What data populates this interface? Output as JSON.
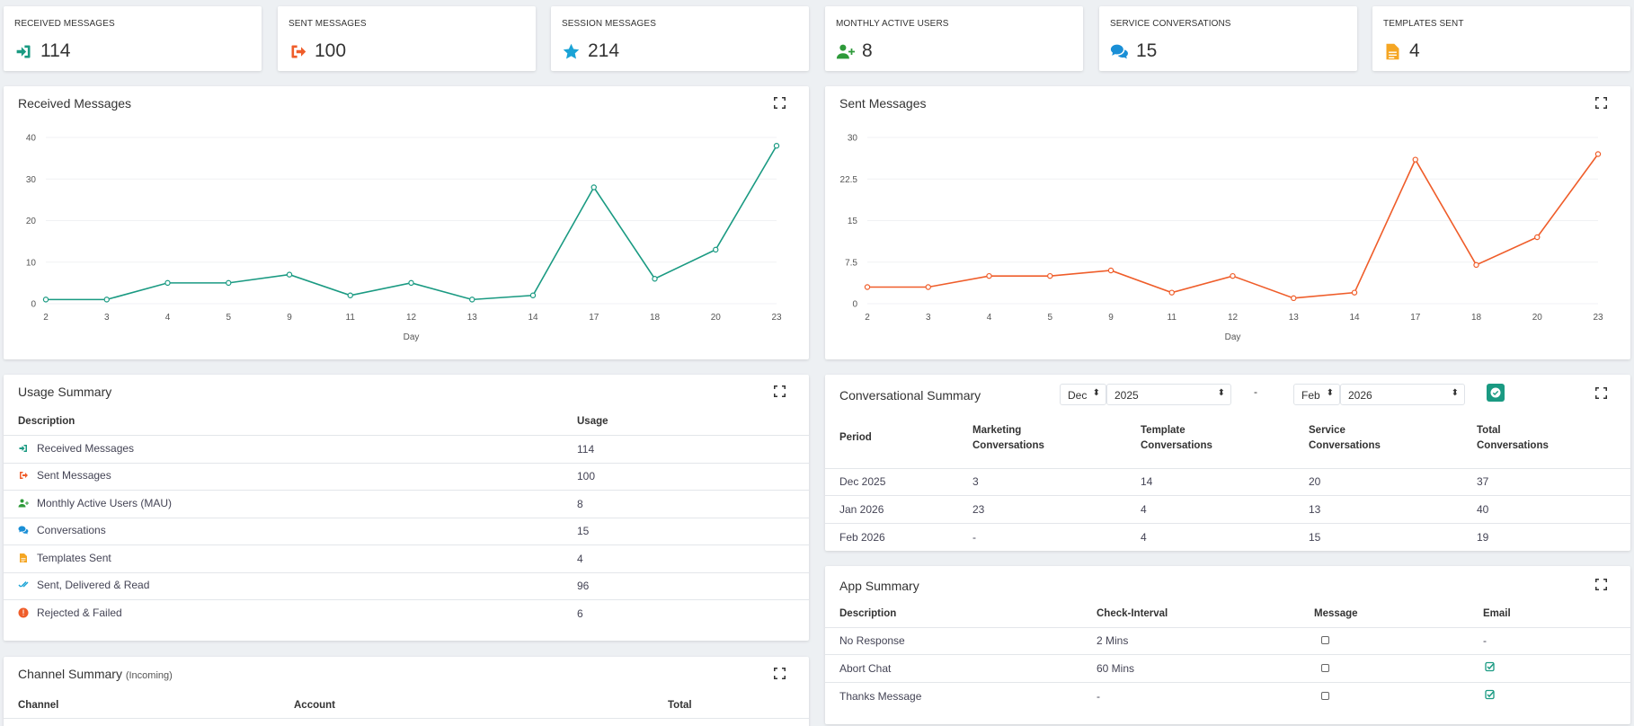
{
  "stats": [
    {
      "label": "RECEIVED MESSAGES",
      "value": "114",
      "icon": "sign-in-icon",
      "color": "#1a9a82"
    },
    {
      "label": "SENT MESSAGES",
      "value": "100",
      "icon": "sign-out-icon",
      "color": "#ef5d2a"
    },
    {
      "label": "SESSION MESSAGES",
      "value": "214",
      "icon": "star-icon",
      "color": "#1aa3d6"
    },
    {
      "label": "MONTHLY ACTIVE USERS",
      "value": "8",
      "icon": "user-plus-icon",
      "color": "#2e9a3a"
    },
    {
      "label": "SERVICE CONVERSATIONS",
      "value": "15",
      "icon": "comments-icon",
      "color": "#1a8fd6"
    },
    {
      "label": "TEMPLATES SENT",
      "value": "4",
      "icon": "file-icon",
      "color": "#f5a623"
    }
  ],
  "received_chart": {
    "title": "Received Messages",
    "chart_data": {
      "type": "line",
      "categories": [
        "2",
        "3",
        "4",
        "5",
        "9",
        "11",
        "12",
        "13",
        "14",
        "17",
        "18",
        "20",
        "23"
      ],
      "values": [
        1,
        1,
        5,
        5,
        7,
        2,
        5,
        1,
        2,
        28,
        6,
        13,
        38
      ],
      "xlabel": "Day",
      "ylabel": "",
      "ylim": [
        0,
        40
      ],
      "yticks": [
        "0",
        "10",
        "20",
        "30",
        "40"
      ],
      "color": "#1a9a82"
    }
  },
  "sent_chart": {
    "title": "Sent Messages",
    "chart_data": {
      "type": "line",
      "categories": [
        "2",
        "3",
        "4",
        "5",
        "9",
        "11",
        "12",
        "13",
        "14",
        "17",
        "18",
        "20",
        "23"
      ],
      "values": [
        3,
        3,
        5,
        5,
        6,
        2,
        5,
        1,
        2,
        26,
        7,
        12,
        27
      ],
      "xlabel": "Day",
      "ylabel": "",
      "ylim": [
        0,
        30
      ],
      "yticks": [
        "0",
        "7.5",
        "15",
        "22.5",
        "30"
      ],
      "color": "#ef5d2a"
    }
  },
  "usage": {
    "title": "Usage Summary",
    "headers": {
      "description": "Description",
      "usage": "Usage"
    },
    "rows": [
      {
        "label": "Received Messages",
        "value": "114",
        "icon": "sign-in-icon",
        "color": "#1a9a82"
      },
      {
        "label": "Sent Messages",
        "value": "100",
        "icon": "sign-out-icon",
        "color": "#ef5d2a"
      },
      {
        "label": "Monthly Active Users (MAU)",
        "value": "8",
        "icon": "user-plus-icon",
        "color": "#2e9a3a"
      },
      {
        "label": "Conversations",
        "value": "15",
        "icon": "comments-icon",
        "color": "#1a8fd6"
      },
      {
        "label": "Templates Sent",
        "value": "4",
        "icon": "file-icon",
        "color": "#f5a623"
      },
      {
        "label": "Sent, Delivered & Read",
        "value": "96",
        "icon": "double-check-icon",
        "color": "#1aa3d6"
      },
      {
        "label": "Rejected & Failed",
        "value": "6",
        "icon": "exclamation-circle-icon",
        "color": "#ef5d2a"
      }
    ]
  },
  "channel": {
    "title": "Channel Summary",
    "subtitle": "(Incoming)",
    "headers": {
      "channel": "Channel",
      "account": "Account",
      "total": "Total"
    }
  },
  "conversational": {
    "title": "Conversational Summary",
    "from_month": "Dec",
    "from_year": "2025",
    "separator": "-",
    "to_month": "Feb",
    "to_year": "2026",
    "headers": {
      "period": "Period",
      "marketing_1": "Marketing",
      "marketing_2": "Conversations",
      "template_1": "Template",
      "template_2": "Conversations",
      "service_1": "Service",
      "service_2": "Conversations",
      "total_1": "Total",
      "total_2": "Conversations"
    },
    "rows": [
      {
        "period": "Dec 2025",
        "marketing": "3",
        "template": "14",
        "service": "20",
        "total": "37"
      },
      {
        "period": "Jan 2026",
        "marketing": "23",
        "template": "4",
        "service": "13",
        "total": "40"
      },
      {
        "period": "Feb 2026",
        "marketing": "-",
        "template": "4",
        "service": "15",
        "total": "19"
      }
    ]
  },
  "app": {
    "title": "App Summary",
    "headers": {
      "description": "Description",
      "interval": "Check-Interval",
      "message": "Message",
      "email": "Email"
    },
    "rows": [
      {
        "description": "No Response",
        "interval": "2 Mins",
        "email": "-"
      },
      {
        "description": "Abort Chat",
        "interval": "60 Mins",
        "email": "checked"
      },
      {
        "description": "Thanks Message",
        "interval": "-",
        "email": "checked"
      }
    ]
  }
}
